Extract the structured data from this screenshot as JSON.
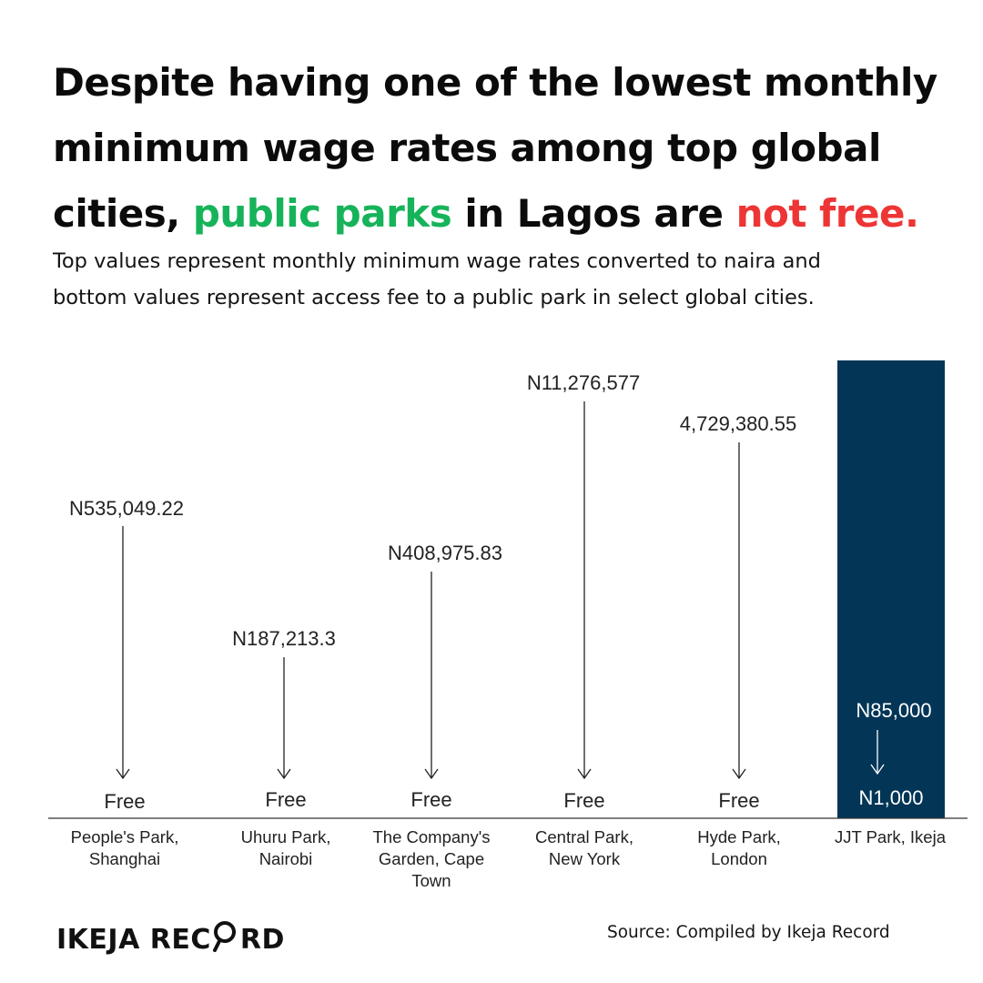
{
  "headline": {
    "line1": "Despite having one of the lowest monthly",
    "line2": "minimum wage rates among top global",
    "line3_start": "cities, ",
    "line3_green": "public parks",
    "line3_mid": " in Lagos are ",
    "line3_red": "not free."
  },
  "subtitle": {
    "line1": "Top values represent monthly minimum wage rates converted to naira and",
    "line2": "bottom values represent access fee to a public park in select global cities."
  },
  "colors": {
    "green": "#17b35a",
    "red": "#ee3535",
    "highlight_bar": "#023556",
    "arrow": "#222222"
  },
  "chart_data": {
    "type": "bar",
    "title": "",
    "xlabel": "",
    "ylabel": "",
    "categories": [
      [
        "People's Park,",
        "Shanghai"
      ],
      [
        "Uhuru Park,",
        "Nairobi"
      ],
      [
        "The Company's",
        "Garden, Cape",
        "Town"
      ],
      [
        "Central Park,",
        "New York"
      ],
      [
        "Hyde Park,",
        "London"
      ],
      [
        "JJT Park, Ikeja"
      ]
    ],
    "series": [
      {
        "values": [
          535049.22,
          187213.3,
          408975.83,
          11276577,
          4729380.55,
          85000
        ],
        "labels": [
          "N535,049.22",
          "N187,213.3",
          "N408,975.83",
          "N11,276,577",
          "4,729,380.55",
          "N85,000"
        ]
      },
      {
        "values": [
          0,
          0,
          0,
          0,
          0,
          1000
        ],
        "labels": [
          "Free",
          "Free",
          "Free",
          "Free",
          "Free",
          "N1,000"
        ]
      }
    ],
    "highlight_category": "JJT Park, Ikeja"
  },
  "footer": {
    "brand": "IKEJA REC",
    "brand_end": "RD",
    "source": "Source: Compiled by Ikeja Record"
  }
}
